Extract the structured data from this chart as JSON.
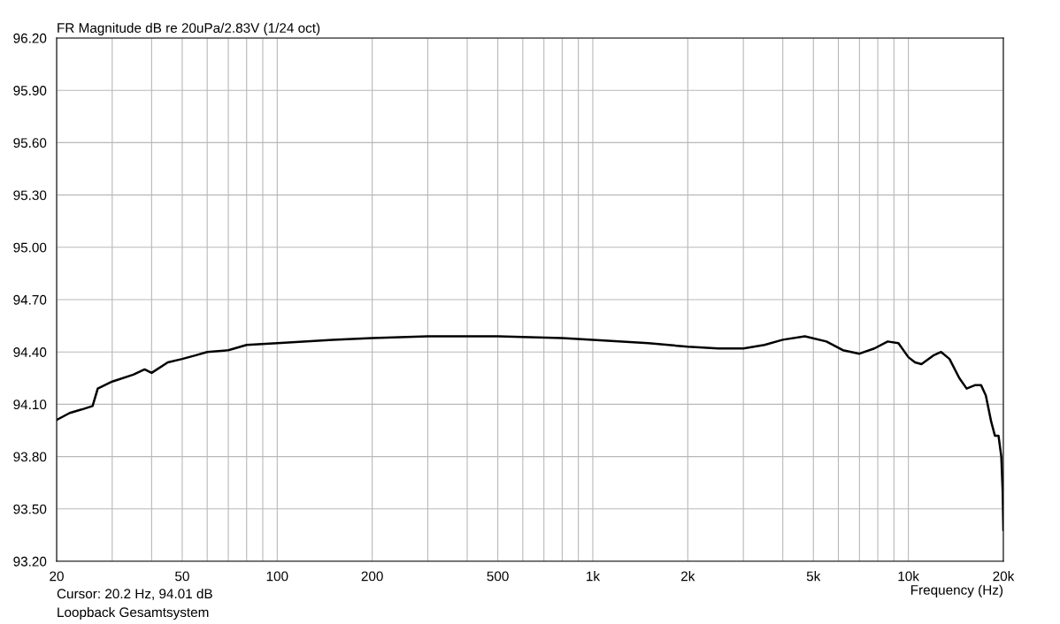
{
  "chart_data": {
    "type": "line",
    "title": "FR Magnitude dB re 20uPa/2.83V (1/24 oct)",
    "xlabel": "Frequency (Hz)",
    "annotations": [
      "Cursor: 20.2 Hz, 94.01 dB",
      "Loopback Gesamtsystem"
    ],
    "log": "x",
    "grid": true,
    "legend": false,
    "marker": "none",
    "line_style": "solid",
    "xlim": [
      20,
      20000
    ],
    "ylim": [
      93.2,
      96.2
    ],
    "xticks": [
      {
        "value": 20,
        "label": "20"
      },
      {
        "value": 30,
        "label": null
      },
      {
        "value": 40,
        "label": null
      },
      {
        "value": 50,
        "label": "50"
      },
      {
        "value": 60,
        "label": null
      },
      {
        "value": 70,
        "label": null
      },
      {
        "value": 80,
        "label": null
      },
      {
        "value": 90,
        "label": null
      },
      {
        "value": 100,
        "label": "100"
      },
      {
        "value": 200,
        "label": "200"
      },
      {
        "value": 300,
        "label": null
      },
      {
        "value": 400,
        "label": null
      },
      {
        "value": 500,
        "label": "500"
      },
      {
        "value": 600,
        "label": null
      },
      {
        "value": 700,
        "label": null
      },
      {
        "value": 800,
        "label": null
      },
      {
        "value": 900,
        "label": null
      },
      {
        "value": 1000,
        "label": "1k"
      },
      {
        "value": 2000,
        "label": "2k"
      },
      {
        "value": 3000,
        "label": null
      },
      {
        "value": 4000,
        "label": null
      },
      {
        "value": 5000,
        "label": "5k"
      },
      {
        "value": 6000,
        "label": null
      },
      {
        "value": 7000,
        "label": null
      },
      {
        "value": 8000,
        "label": null
      },
      {
        "value": 9000,
        "label": null
      },
      {
        "value": 10000,
        "label": "10k"
      },
      {
        "value": 20000,
        "label": "20k"
      }
    ],
    "yticks": [
      {
        "value": 93.2,
        "label": "93.20"
      },
      {
        "value": 93.5,
        "label": "93.50"
      },
      {
        "value": 93.8,
        "label": "93.80"
      },
      {
        "value": 94.1,
        "label": "94.10"
      },
      {
        "value": 94.4,
        "label": "94.40"
      },
      {
        "value": 94.7,
        "label": "94.70"
      },
      {
        "value": 95.0,
        "label": "95.00"
      },
      {
        "value": 95.3,
        "label": "95.30"
      },
      {
        "value": 95.6,
        "label": "95.60"
      },
      {
        "value": 95.9,
        "label": "95.90"
      },
      {
        "value": 96.2,
        "label": "96.20"
      }
    ],
    "series": [
      {
        "color": "#000000",
        "x": [
          20,
          22,
          24,
          26,
          27,
          30,
          35,
          38,
          40,
          45,
          50,
          55,
          60,
          70,
          80,
          100,
          150,
          200,
          300,
          500,
          800,
          1000,
          1500,
          2000,
          2500,
          3000,
          3500,
          4000,
          4700,
          5500,
          6200,
          7000,
          7800,
          8600,
          9300,
          10000,
          10500,
          11000,
          12000,
          12700,
          13500,
          14500,
          15300,
          16300,
          17000,
          17600,
          18300,
          18800,
          19300,
          19700,
          19900,
          20000
        ],
        "values": [
          94.01,
          94.05,
          94.07,
          94.09,
          94.19,
          94.23,
          94.27,
          94.3,
          94.28,
          94.34,
          94.36,
          94.38,
          94.4,
          94.41,
          94.44,
          94.45,
          94.47,
          94.48,
          94.49,
          94.49,
          94.48,
          94.47,
          94.45,
          94.43,
          94.42,
          94.42,
          94.44,
          94.47,
          94.49,
          94.46,
          94.41,
          94.39,
          94.42,
          94.46,
          94.45,
          94.37,
          94.34,
          94.33,
          94.38,
          94.4,
          94.36,
          94.25,
          94.19,
          94.21,
          94.21,
          94.15,
          94.0,
          93.92,
          93.92,
          93.8,
          93.6,
          93.38
        ]
      }
    ]
  }
}
